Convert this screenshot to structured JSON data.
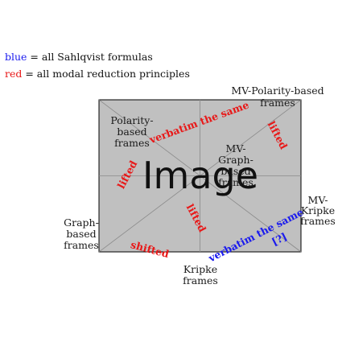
{
  "legend": {
    "blue_key": "blue",
    "blue_text": " = all Sahlqvist formulas",
    "red_key": "red",
    "red_text": " = all modal reduction principles"
  },
  "image_placeholder": "Image",
  "nodes": {
    "mv_polarity_line1": "MV-Polarity-based",
    "mv_polarity_line2": "frames",
    "polarity_line1": "Polarity-",
    "polarity_line2": "based",
    "polarity_line3": "frames",
    "mv_graph_line1": "MV-",
    "mv_graph_line2": "Graph-",
    "mv_graph_line3": "based",
    "mv_graph_line4": "frames",
    "mv_kripke_line1": "MV-",
    "mv_kripke_line2": "Kripke",
    "mv_kripke_line3": "frames",
    "graph_line1": "Graph-",
    "graph_line2": "based",
    "graph_line3": "frames",
    "kripke_line1": "Kripke",
    "kripke_line2": "frames"
  },
  "edges": {
    "verbatim_top": "verbatim the same",
    "lifted_right": "lifted",
    "lifted_left": "lifted",
    "lifted_center": "lifted",
    "shifted": "shifted",
    "verbatim_bottom": "verbatim the same",
    "citation": "[?]"
  },
  "colors": {
    "blue": "#1a1aee",
    "red": "#e81818",
    "placeholder_fill": "#c0c0c0"
  }
}
